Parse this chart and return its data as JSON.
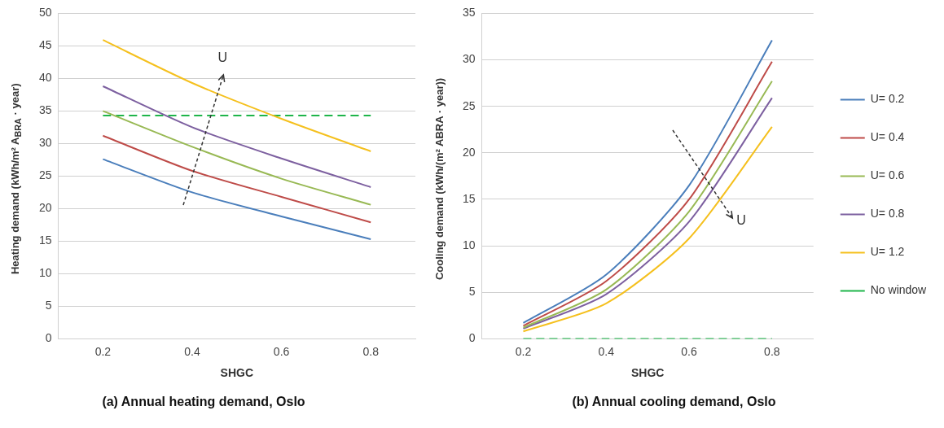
{
  "chart_data": [
    {
      "type": "line",
      "title": "(a) Annual heating demand, Oslo",
      "xlabel": "SHGC",
      "ylabel": "Heating demand (kWh/m² A$_{BRA}$ · year)",
      "categories": [
        "0.2",
        "0.4",
        "0.6",
        "0.8"
      ],
      "series": [
        {
          "color": "#4a7ebb",
          "values": [
            27.6,
            22.5,
            18.8,
            15.3
          ]
        },
        {
          "color": "#be4b48",
          "values": [
            31.2,
            25.8,
            21.8,
            17.9
          ]
        },
        {
          "color": "#98b954",
          "values": [
            35.0,
            29.5,
            24.6,
            20.6
          ]
        },
        {
          "color": "#7d60a0",
          "values": [
            38.8,
            32.5,
            27.7,
            23.3
          ]
        },
        {
          "color": "#f5c01e",
          "values": [
            45.9,
            39.3,
            33.8,
            28.8
          ]
        },
        {
          "color": "#1fb54a",
          "values": [
            34.3,
            34.3,
            34.3,
            34.3
          ],
          "line_style": "dashed"
        }
      ],
      "ylim": [
        0,
        50
      ],
      "yticks": [
        0,
        5,
        10,
        15,
        20,
        25,
        30,
        35,
        40,
        45,
        50
      ],
      "grid": "y",
      "legend": false,
      "marker": "none",
      "annotations": [
        "U"
      ]
    },
    {
      "type": "line",
      "title": "(b) Annual cooling demand, Oslo",
      "xlabel": "SHGC",
      "ylabel": "Cooling demand (kWh/(m² ABRA · year))",
      "categories": [
        "0.2",
        "0.4",
        "0.6",
        "0.8"
      ],
      "series": [
        {
          "name": "U= 0.2",
          "color": "#4a7ebb",
          "values": [
            1.7,
            6.9,
            16.5,
            32.1
          ]
        },
        {
          "name": "U= 0.4",
          "color": "#be4b48",
          "values": [
            1.4,
            6.2,
            15.0,
            29.8
          ]
        },
        {
          "name": "U= 0.6",
          "color": "#98b954",
          "values": [
            1.2,
            5.3,
            13.7,
            27.7
          ]
        },
        {
          "name": "U= 0.8",
          "color": "#7d60a0",
          "values": [
            1.1,
            4.8,
            12.6,
            25.9
          ]
        },
        {
          "name": "U= 1.2",
          "color": "#f5c01e",
          "values": [
            0.8,
            3.8,
            10.8,
            22.8
          ]
        },
        {
          "name": "No window",
          "color": "#1fb54a",
          "values": [
            0,
            0,
            0,
            0
          ],
          "line_style": "dashed"
        }
      ],
      "ylim": [
        0,
        35
      ],
      "yticks": [
        0,
        5,
        10,
        15,
        20,
        25,
        30,
        35
      ],
      "grid": "y",
      "legend": "right",
      "marker": "none",
      "annotations": [
        "U"
      ]
    }
  ]
}
